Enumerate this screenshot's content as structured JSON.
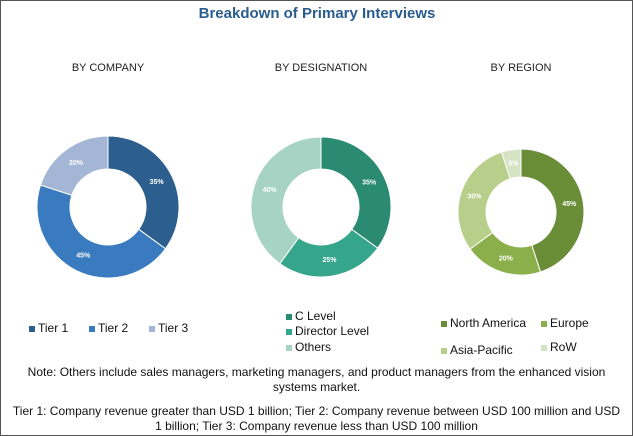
{
  "title": "Breakdown of Primary Interviews",
  "chart_data": [
    {
      "type": "pie",
      "title": "BY COMPANY",
      "categories": [
        "Tier 1",
        "Tier 2",
        "Tier 3"
      ],
      "values": [
        35,
        45,
        20
      ],
      "value_labels": [
        "35%",
        "45%",
        "20%"
      ],
      "colors": [
        "#2d5f8e",
        "#3a7bc0",
        "#a4b6d6"
      ]
    },
    {
      "type": "pie",
      "title": "BY DESIGNATION",
      "categories": [
        "C Level",
        "Director Level",
        "Others"
      ],
      "values": [
        35,
        25,
        40
      ],
      "value_labels": [
        "35%",
        "25%",
        "40%"
      ],
      "colors": [
        "#2b8a72",
        "#35a68b",
        "#a7d3c5"
      ]
    },
    {
      "type": "pie",
      "title": "BY REGION",
      "categories": [
        "North America",
        "Europe",
        "Asia-Pacific",
        "RoW"
      ],
      "values": [
        45,
        20,
        30,
        5
      ],
      "value_labels": [
        "45%",
        "20%",
        "30%",
        "5%"
      ],
      "colors": [
        "#6a8d38",
        "#8bb04b",
        "#b7cf8b",
        "#d6e3c5"
      ]
    }
  ],
  "notes": [
    "Note: Others include sales managers, marketing managers, and product managers from the enhanced vision systems market.",
    "Tier 1: Company revenue greater than USD 1 billion; Tier 2: Company revenue between USD 100 million and USD 1 billion; Tier 3: Company revenue less than USD 100 million"
  ]
}
